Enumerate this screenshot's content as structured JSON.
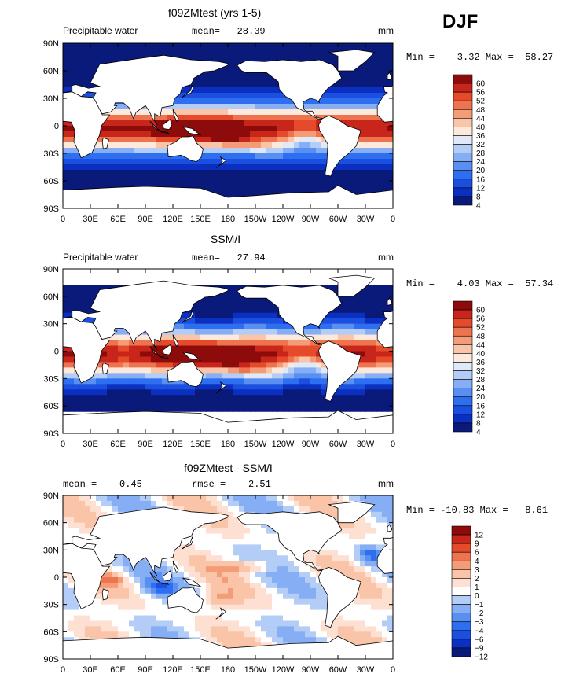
{
  "season": "DJF",
  "latitude_labels": [
    "90N",
    "60N",
    "30N",
    "0",
    "30S",
    "60S",
    "90S"
  ],
  "longitude_labels": [
    "0",
    "30E",
    "60E",
    "90E",
    "120E",
    "150E",
    "180",
    "150W",
    "120W",
    "90W",
    "60W",
    "30W",
    "0"
  ],
  "panels": [
    {
      "title": "f09ZMtest (yrs 1-5)",
      "header_left": "Precipitable water",
      "header_mid": "mean=   28.39",
      "units": "mm",
      "stats": "Min =    3.32 Max =  58.27",
      "colorbar_labels": [
        "60",
        "56",
        "52",
        "48",
        "44",
        "40",
        "36",
        "32",
        "28",
        "24",
        "20",
        "16",
        "12",
        "8",
        "4"
      ]
    },
    {
      "title": "SSM/I",
      "header_left": "Precipitable water",
      "header_mid": "mean=   27.94",
      "units": "mm",
      "stats": "Min =    4.03 Max =  57.34",
      "colorbar_labels": [
        "60",
        "56",
        "52",
        "48",
        "44",
        "40",
        "36",
        "32",
        "28",
        "24",
        "20",
        "16",
        "12",
        "8",
        "4"
      ]
    },
    {
      "title": "f09ZMtest - SSM/I",
      "header_left": "mean =    0.45",
      "header_mid": "rmse =    2.51",
      "units": "mm",
      "stats": "Min = -10.83 Max =   8.61",
      "colorbar_labels": [
        "12",
        "9",
        "6",
        "4",
        "3",
        "2",
        "1",
        "0",
        "−1",
        "−2",
        "−3",
        "−4",
        "−6",
        "−9",
        "−12"
      ]
    }
  ],
  "colors": {
    "absolute_scale": [
      "#0a1a7a",
      "#0b2fc0",
      "#1a4fe0",
      "#2e6ef0",
      "#5a8ff2",
      "#86aef4",
      "#b3cdf6",
      "#dfe9f8",
      "#fde8dc",
      "#f9c4a8",
      "#f49c78",
      "#ee7450",
      "#e54a2a",
      "#c8261a",
      "#8e0b0b"
    ],
    "anomaly_scale": [
      "#0a1a7a",
      "#0b2fc0",
      "#1a4fe0",
      "#2e6ef0",
      "#5a8ff2",
      "#86aef4",
      "#b3cdf6",
      "#ffffff",
      "#fde0d2",
      "#f9c4a8",
      "#f49c78",
      "#ee7450",
      "#e54a2a",
      "#c8261a",
      "#8e0b0b"
    ],
    "land": "#ffffff"
  }
}
